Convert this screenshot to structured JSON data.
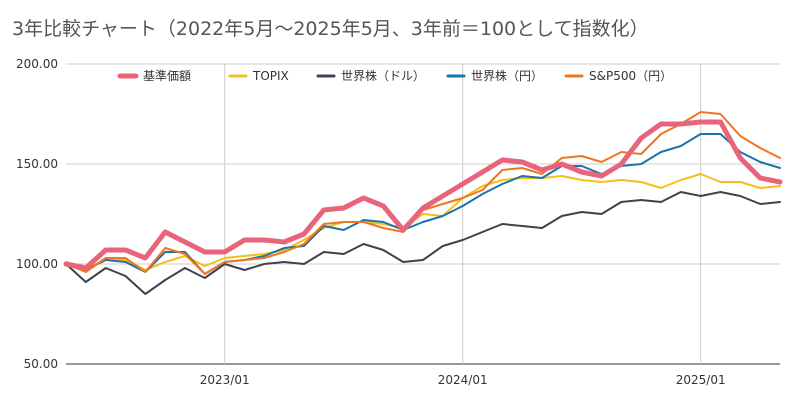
{
  "chart_data": {
    "type": "line",
    "title": "3年比較チャート（2022年5月〜2025年5月、3年前＝100として指数化）",
    "xlabel": "",
    "ylabel": "",
    "ylim": [
      50,
      200
    ],
    "yticks": [
      50,
      100,
      150,
      200
    ],
    "ytick_labels": [
      "50.00",
      "100.00",
      "150.00",
      "200.00"
    ],
    "xtick_labels": [
      "2023/01",
      "2024/01",
      "2025/01"
    ],
    "xtick_dates": [
      "2023-01",
      "2024-01",
      "2025-01"
    ],
    "grid": true,
    "legend_position": "top",
    "x": [
      "2022-05",
      "2022-06",
      "2022-07",
      "2022-08",
      "2022-09",
      "2022-10",
      "2022-11",
      "2022-12",
      "2023-01",
      "2023-02",
      "2023-03",
      "2023-04",
      "2023-05",
      "2023-06",
      "2023-07",
      "2023-08",
      "2023-09",
      "2023-10",
      "2023-11",
      "2023-12",
      "2024-01",
      "2024-02",
      "2024-03",
      "2024-04",
      "2024-05",
      "2024-06",
      "2024-07",
      "2024-08",
      "2024-09",
      "2024-10",
      "2024-11",
      "2024-12",
      "2025-01",
      "2025-02",
      "2025-03",
      "2025-04",
      "2025-05"
    ],
    "series": [
      {
        "name": "基準価額",
        "color": "#e8647a",
        "width": 5,
        "values": [
          100,
          98,
          107,
          107,
          103,
          116,
          111,
          106,
          106,
          112,
          112,
          111,
          115,
          127,
          128,
          133,
          129,
          117,
          128,
          134,
          140,
          146,
          152,
          151,
          147,
          150,
          146,
          144,
          150,
          163,
          170,
          170,
          171,
          171,
          153,
          143,
          141
        ]
      },
      {
        "name": "TOPIX",
        "color": "#f5bf1a",
        "width": 2,
        "values": [
          101,
          98,
          102,
          102,
          97,
          101,
          104,
          99,
          103,
          104,
          105,
          107,
          112,
          118,
          121,
          121,
          120,
          118,
          125,
          124,
          133,
          139,
          142,
          143,
          143,
          144,
          142,
          141,
          142,
          141,
          138,
          142,
          145,
          141,
          141,
          138,
          139
        ]
      },
      {
        "name": "世界株（ドル）",
        "color": "#3f4150",
        "width": 2,
        "values": [
          100,
          91,
          98,
          94,
          85,
          92,
          98,
          93,
          100,
          97,
          100,
          101,
          100,
          106,
          105,
          110,
          107,
          101,
          102,
          109,
          112,
          116,
          120,
          119,
          118,
          124,
          126,
          125,
          131,
          132,
          131,
          136,
          134,
          136,
          134,
          130,
          131
        ]
      },
      {
        "name": "世界株（円）",
        "color": "#1a74a8",
        "width": 2,
        "values": [
          100,
          97,
          102,
          101,
          96,
          106,
          106,
          95,
          101,
          102,
          104,
          108,
          109,
          119,
          117,
          122,
          121,
          117,
          121,
          124,
          129,
          135,
          140,
          144,
          143,
          149,
          149,
          145,
          149,
          150,
          156,
          159,
          165,
          165,
          156,
          151,
          148
        ]
      },
      {
        "name": "S&P500（円）",
        "color": "#f07520",
        "width": 2,
        "values": [
          100,
          96,
          103,
          103,
          96,
          108,
          105,
          95,
          101,
          102,
          103,
          106,
          110,
          120,
          121,
          121,
          118,
          116,
          127,
          130,
          133,
          137,
          147,
          148,
          145,
          153,
          154,
          151,
          156,
          155,
          165,
          170,
          176,
          175,
          164,
          158,
          153
        ]
      }
    ]
  }
}
